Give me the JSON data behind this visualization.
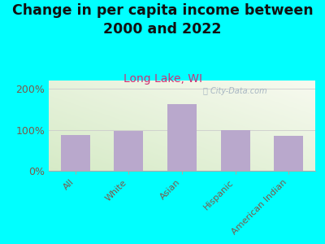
{
  "title": "Change in per capita income between\n2000 and 2022",
  "subtitle": "Long Lake, WI",
  "categories": [
    "All",
    "White",
    "Asian",
    "Hispanic",
    "American Indian"
  ],
  "values": [
    88,
    98,
    163,
    100,
    85
  ],
  "bar_color": "#b9a8cc",
  "title_fontsize": 12.5,
  "subtitle_fontsize": 10,
  "subtitle_color": "#cc3377",
  "tick_label_color": "#7a5a4a",
  "background_outer": "#00ffff",
  "ylim": [
    0,
    220
  ],
  "yticks": [
    0,
    100,
    200
  ],
  "ytick_labels": [
    "0%",
    "100%",
    "200%"
  ],
  "watermark": "ⓘ City-Data.com",
  "bg_topleft": [
    0.84,
    0.92,
    0.78
  ],
  "bg_bottomright": [
    0.97,
    0.98,
    0.94
  ]
}
